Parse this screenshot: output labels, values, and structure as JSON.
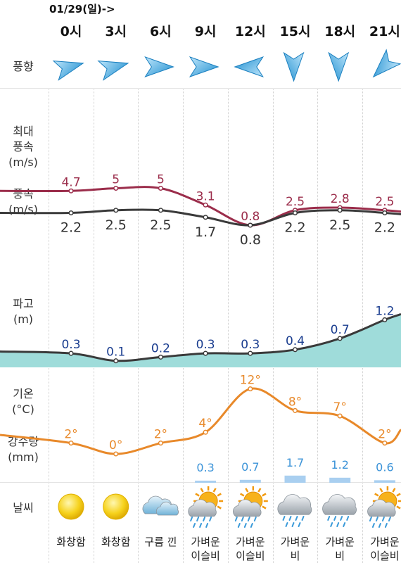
{
  "date_label": "01/29(일)->",
  "hours": [
    "0시",
    "3시",
    "6시",
    "9시",
    "12시",
    "15시",
    "18시",
    "21시"
  ],
  "labels": {
    "wind_dir": "풍향",
    "max_wind": "최대\n풍속\n(m/s)",
    "wind": "풍속\n(m/s)",
    "wave": "파고\n(m)",
    "temp": "기온\n(°C)",
    "rain": "강수량\n(mm)",
    "weather": "날씨"
  },
  "wind_direction_icons": [
    "arrow-east-northeast-icon",
    "arrow-east-northeast-icon",
    "arrow-east-icon",
    "arrow-east-icon",
    "arrow-west-icon",
    "arrow-south-icon",
    "arrow-south-icon",
    "arrow-southwest-icon"
  ],
  "chart_data": [
    {
      "type": "line",
      "x": [
        "0시",
        "3시",
        "6시",
        "9시",
        "12시",
        "15시",
        "18시",
        "21시"
      ],
      "series": [
        {
          "values": [
            4.7,
            5,
            5,
            3.1,
            0.8,
            2.5,
            2.8,
            2.5
          ],
          "labels": [
            "4.7",
            "5",
            "5",
            "3.1",
            "0.8",
            "2.5",
            "2.8",
            "2.5"
          ],
          "color": "#9b2d4b"
        },
        {
          "values": [
            2.2,
            2.5,
            2.5,
            1.7,
            0.8,
            2.2,
            2.5,
            2.2
          ],
          "labels": [
            "2.2",
            "2.5",
            "2.5",
            "1.7",
            "0.8",
            "2.2",
            "2.5",
            "2.2"
          ],
          "color": "#3a3a3a"
        }
      ]
    },
    {
      "type": "area",
      "x": [
        "0시",
        "3시",
        "6시",
        "9시",
        "12시",
        "15시",
        "18시",
        "21시"
      ],
      "series": [
        {
          "values": [
            0.3,
            0.1,
            0.2,
            0.3,
            0.3,
            0.4,
            0.7,
            1.2
          ],
          "labels": [
            "0.3",
            "0.1",
            "0.2",
            "0.3",
            "0.3",
            "0.4",
            "0.7",
            "1.2"
          ],
          "color": "#1a3d8f",
          "fill": "#9fdcda"
        }
      ]
    },
    {
      "type": "line",
      "x": [
        "0시",
        "3시",
        "6시",
        "9시",
        "12시",
        "15시",
        "18시",
        "21시"
      ],
      "series": [
        {
          "values": [
            2,
            0,
            2,
            4,
            12,
            8,
            7,
            2
          ],
          "labels": [
            "2°",
            "0°",
            "2°",
            "4°",
            "12°",
            "8°",
            "7°",
            "2°"
          ],
          "color": "#e8892a"
        }
      ]
    },
    {
      "type": "bar",
      "x": [
        "0시",
        "3시",
        "6시",
        "9시",
        "12시",
        "15시",
        "18시",
        "21시"
      ],
      "values": [
        null,
        null,
        null,
        0.3,
        0.7,
        1.7,
        1.2,
        0.6
      ],
      "labels": [
        "",
        "",
        "",
        "0.3",
        "0.7",
        "1.7",
        "1.2",
        "0.6"
      ],
      "color": "#3b93d8"
    }
  ],
  "weather": [
    {
      "icon": "sun-icon",
      "desc": "화창함"
    },
    {
      "icon": "sun-icon",
      "desc": "화창함"
    },
    {
      "icon": "cloud-icon",
      "desc": "구름 낀"
    },
    {
      "icon": "sun-cloud-rain-icon",
      "desc": "가벼운\n이슬비"
    },
    {
      "icon": "sun-cloud-rain-icon",
      "desc": "가벼운\n이슬비"
    },
    {
      "icon": "cloud-rain-icon",
      "desc": "가벼운\n비"
    },
    {
      "icon": "cloud-rain-icon",
      "desc": "가벼운\n비"
    },
    {
      "icon": "sun-cloud-rain-icon",
      "desc": "가벼운\n이슬비"
    }
  ]
}
